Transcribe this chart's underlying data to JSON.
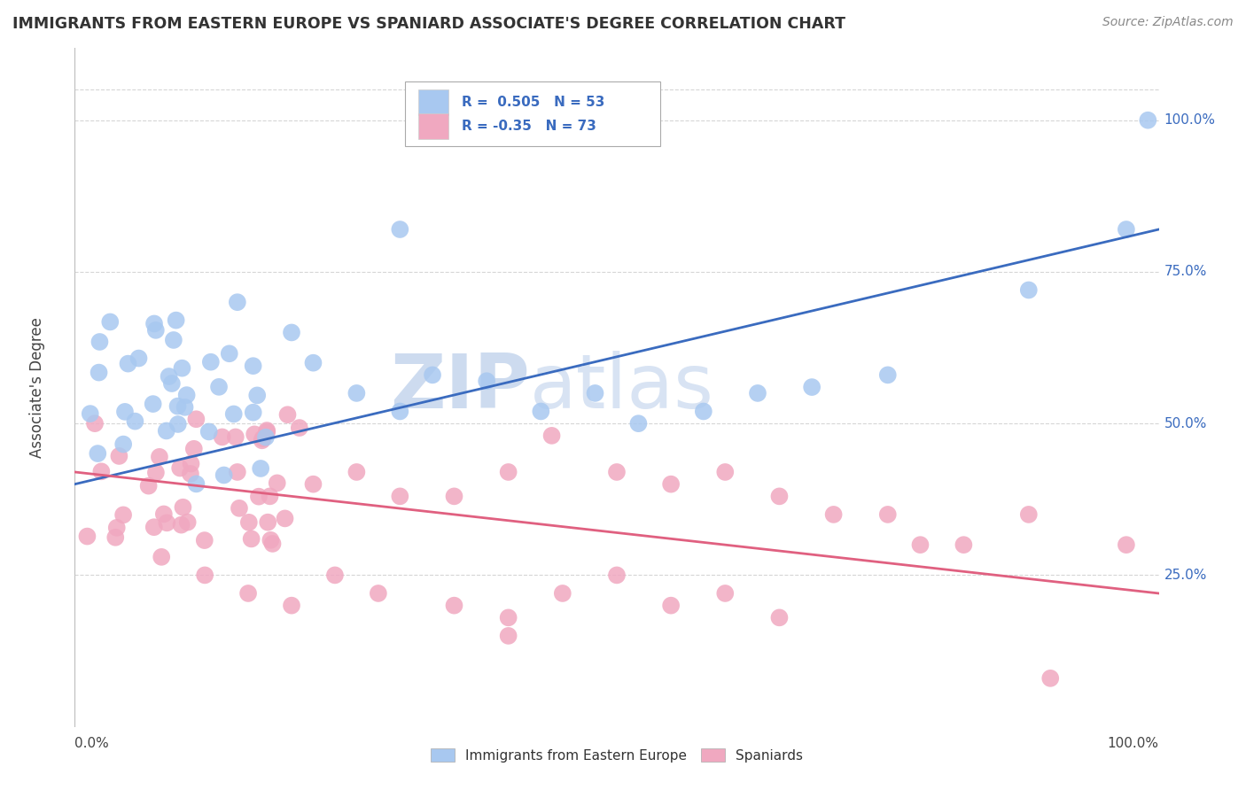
{
  "title": "IMMIGRANTS FROM EASTERN EUROPE VS SPANIARD ASSOCIATE'S DEGREE CORRELATION CHART",
  "source": "Source: ZipAtlas.com",
  "ylabel": "Associate's Degree",
  "y_tick_labels": [
    "25.0%",
    "50.0%",
    "75.0%",
    "100.0%"
  ],
  "y_tick_positions": [
    0.25,
    0.5,
    0.75,
    1.0
  ],
  "x_tick_labels": [
    "0.0%",
    "100.0%"
  ],
  "series1_label": "Immigrants from Eastern Europe",
  "series1_color": "#a8c8f0",
  "series1_edge_color": "#a8c8f0",
  "series1_line_color": "#3a6bbf",
  "series1_R": 0.505,
  "series1_N": 53,
  "series2_label": "Spaniards",
  "series2_color": "#f0a8c0",
  "series2_edge_color": "#f0a8c0",
  "series2_line_color": "#e06080",
  "series2_R": -0.35,
  "series2_N": 73,
  "legend_text_color": "#3a6bbf",
  "right_label_color": "#3a6bbf",
  "background_color": "#ffffff",
  "grid_color": "#cccccc",
  "watermark_zip_color": "#c8d8ee",
  "watermark_atlas_color": "#c8d8ee",
  "blue_line_y0": 0.4,
  "blue_line_y1": 0.82,
  "pink_line_y0": 0.42,
  "pink_line_y1": 0.22,
  "xlim": [
    0,
    1
  ],
  "ylim": [
    0,
    1.12
  ]
}
